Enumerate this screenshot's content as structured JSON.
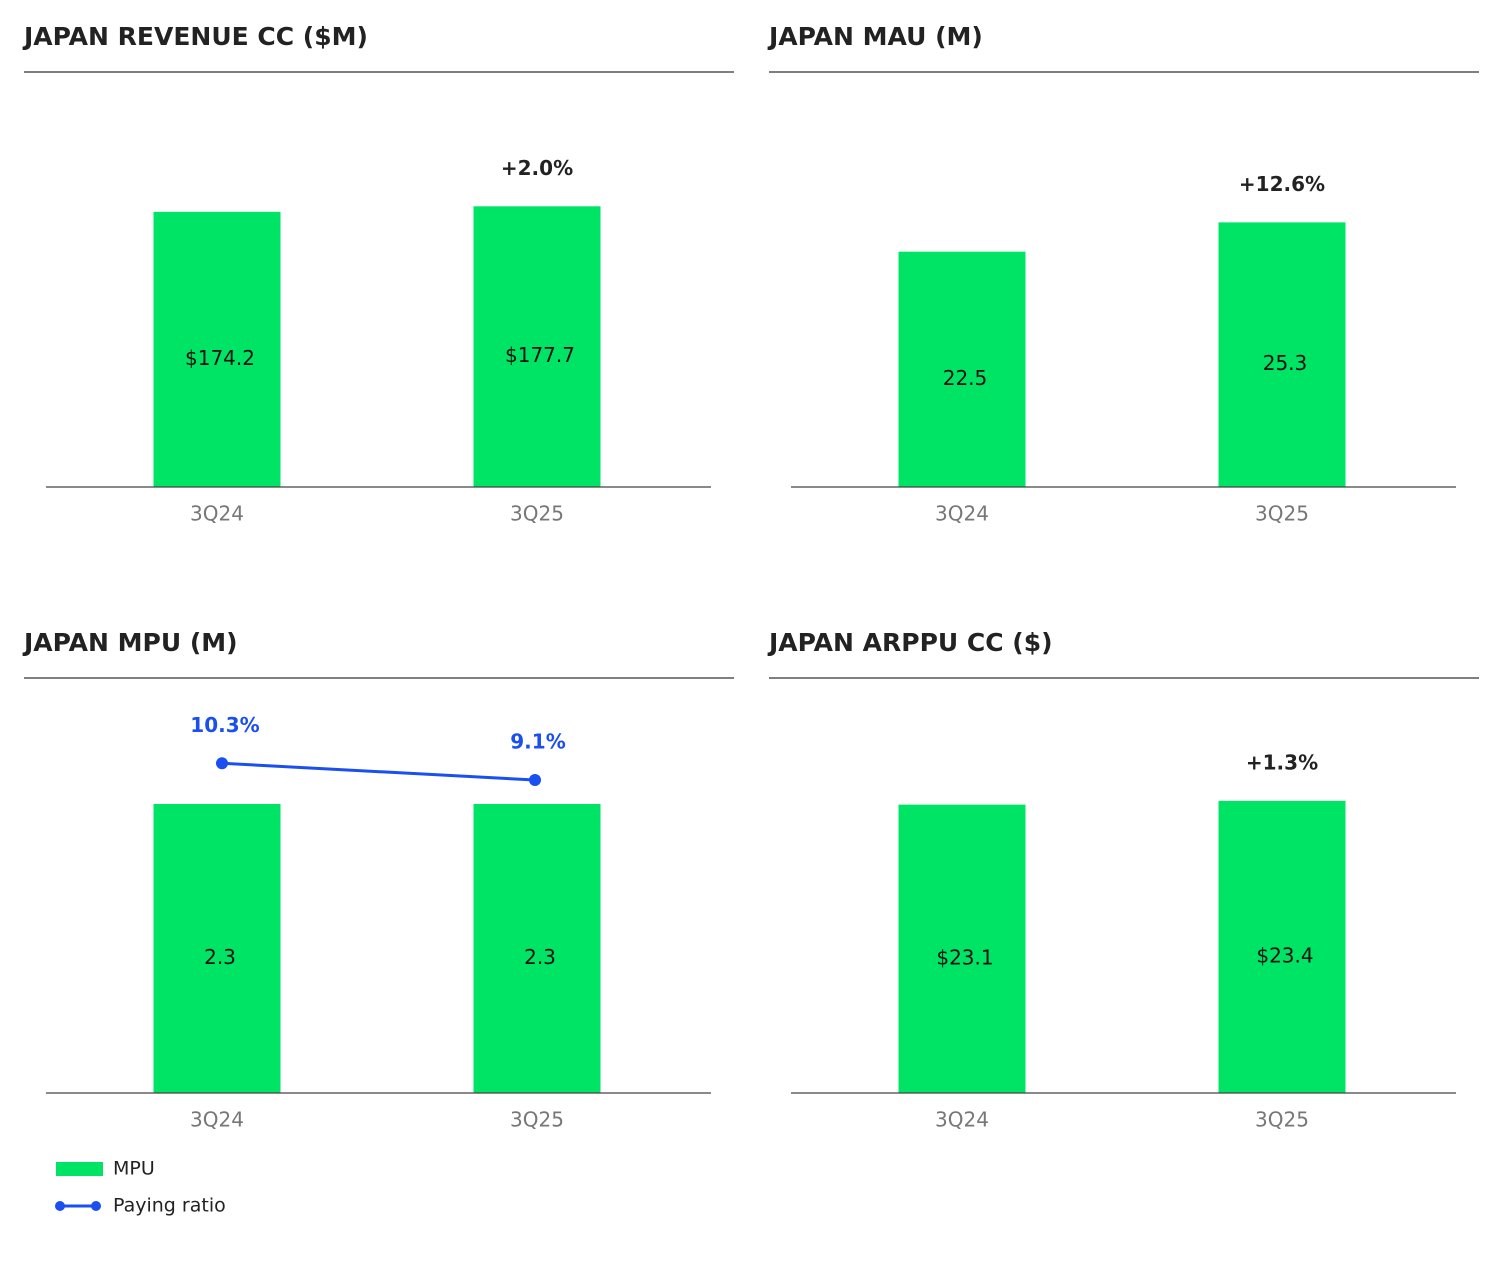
{
  "chart_data": [
    {
      "type": "bar",
      "title": "JAPAN REVENUE CC ($M)",
      "categories": [
        "3Q24",
        "3Q25"
      ],
      "values": [
        174.2,
        177.7
      ],
      "value_labels": [
        "$174.2",
        "$177.7"
      ],
      "annotation": "+2.0%",
      "color": "#00e465",
      "ylim": [
        0,
        245
      ]
    },
    {
      "type": "bar",
      "title": "JAPAN MAU (M)",
      "categories": [
        "3Q24",
        "3Q25"
      ],
      "values": [
        22.5,
        25.3
      ],
      "annotation": "+12.6%",
      "color": "#00e465",
      "ylim": [
        0,
        37
      ]
    },
    {
      "type": "combo",
      "title": "JAPAN MPU (M)",
      "categories": [
        "3Q24",
        "3Q25"
      ],
      "series": [
        {
          "name": "MPU",
          "type": "bar",
          "color": "#00e465",
          "values": [
            2.3,
            2.3
          ]
        },
        {
          "name": "Paying ratio",
          "type": "line",
          "axis": "y2",
          "color": "#1a4ff0",
          "values": [
            10.3,
            9.1
          ],
          "value_labels": [
            "10.3%",
            "9.1%"
          ]
        }
      ],
      "ylim": [
        0,
        3.08
      ],
      "y2lim": [
        -13.3,
        14.4
      ],
      "legend": "bottom-left"
    },
    {
      "type": "bar",
      "title": "JAPAN ARPPU CC ($)",
      "categories": [
        "3Q24",
        "3Q25"
      ],
      "values": [
        23.1,
        23.4
      ],
      "value_labels": [
        "$23.1",
        "$23.4"
      ],
      "annotation": "+1.3%",
      "color": "#00e465",
      "ylim": [
        0,
        31
      ]
    }
  ]
}
